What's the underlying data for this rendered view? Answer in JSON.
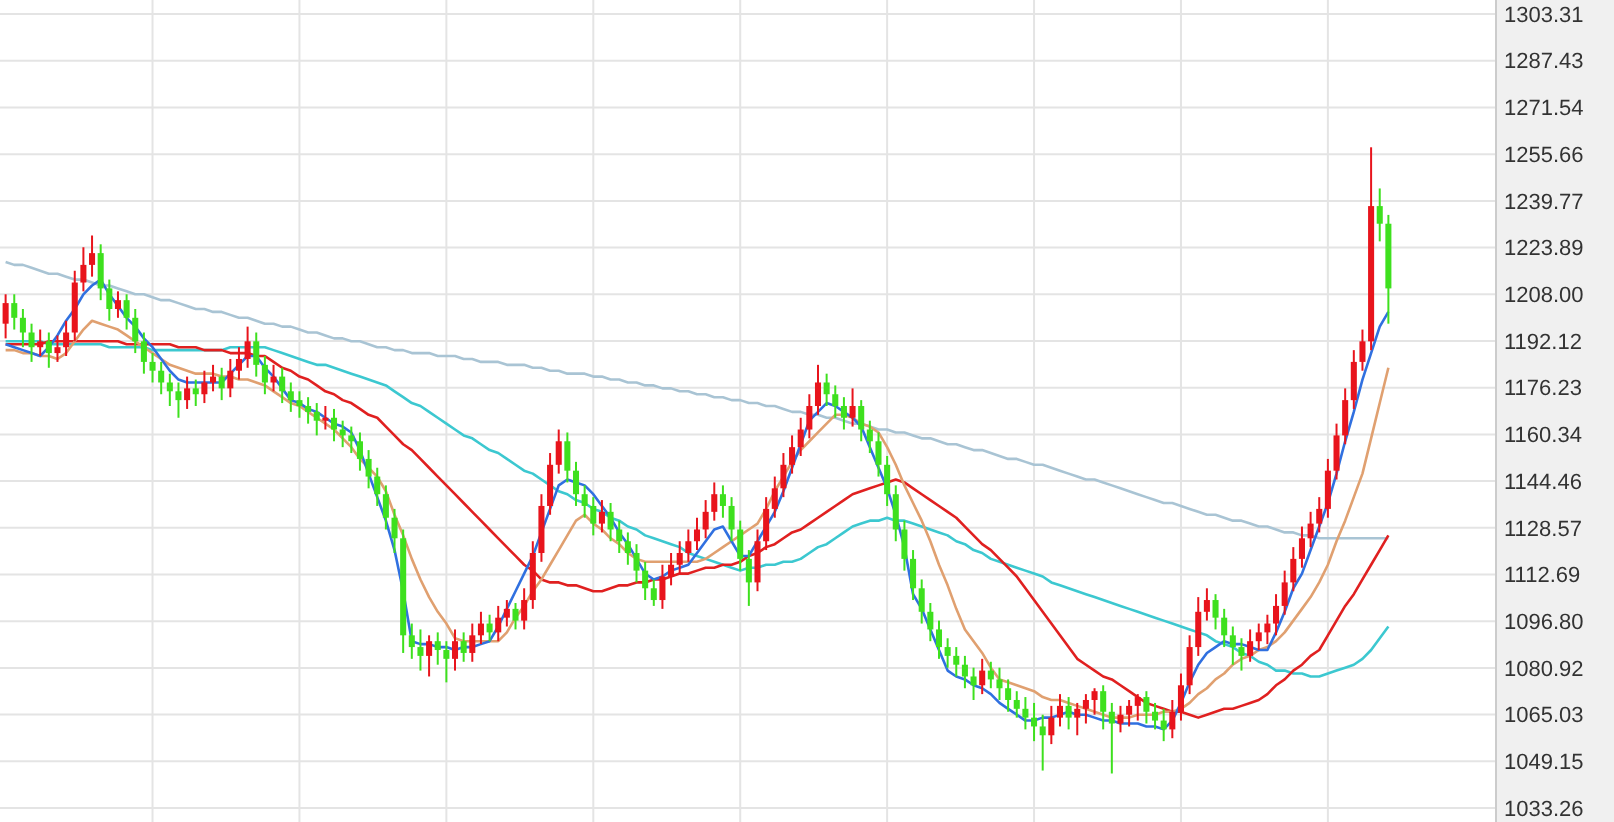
{
  "chart_data": {
    "type": "candlestick",
    "categories": [
      null,
      null,
      null,
      null,
      null,
      null,
      null,
      null,
      null,
      null,
      null,
      null,
      null,
      null,
      null,
      null,
      null,
      null,
      null,
      null,
      null,
      null,
      null,
      null,
      null,
      null,
      null,
      null,
      null,
      null,
      null,
      null,
      null,
      null,
      null,
      null,
      null,
      null,
      null,
      null,
      null,
      null,
      null,
      null,
      null,
      null,
      null,
      null,
      null,
      null,
      null,
      null,
      null,
      null,
      null,
      null,
      null,
      null,
      null,
      null,
      null,
      null,
      null,
      null,
      null,
      null,
      null,
      null,
      null,
      null,
      null,
      null,
      null,
      null,
      null,
      null,
      null,
      null,
      null,
      null,
      null,
      null,
      null,
      null,
      null,
      null,
      null,
      null,
      null,
      null,
      null,
      null,
      null,
      null,
      null,
      null,
      null,
      null,
      null,
      null,
      null,
      null,
      null,
      null,
      null,
      null,
      null,
      null,
      null,
      null,
      null,
      null,
      null,
      null,
      null,
      null,
      null,
      null,
      null,
      null,
      null,
      null,
      null,
      null,
      null,
      null,
      null,
      null,
      null,
      null,
      null,
      null,
      null,
      null,
      null,
      null,
      null,
      null,
      null,
      null,
      null,
      null,
      null,
      null,
      null,
      null,
      null,
      null,
      null,
      null,
      null,
      null,
      null,
      null,
      null,
      null,
      null,
      null,
      null,
      null,
      null
    ],
    "ohlc": [
      [
        1198,
        1208,
        1193,
        1205
      ],
      [
        1205,
        1208,
        1196,
        1200
      ],
      [
        1200,
        1203,
        1190,
        1195
      ],
      [
        1195,
        1198,
        1185,
        1190
      ],
      [
        1190,
        1196,
        1187,
        1192
      ],
      [
        1192,
        1195,
        1183,
        1188
      ],
      [
        1188,
        1194,
        1185,
        1190
      ],
      [
        1190,
        1199,
        1187,
        1195
      ],
      [
        1195,
        1216,
        1192,
        1212
      ],
      [
        1212,
        1224,
        1209,
        1218
      ],
      [
        1218,
        1228,
        1214,
        1222
      ],
      [
        1222,
        1225,
        1206,
        1210
      ],
      [
        1210,
        1213,
        1199,
        1203
      ],
      [
        1203,
        1209,
        1200,
        1206
      ],
      [
        1206,
        1208,
        1196,
        1200
      ],
      [
        1200,
        1203,
        1188,
        1192
      ],
      [
        1192,
        1195,
        1181,
        1185
      ],
      [
        1185,
        1188,
        1178,
        1182
      ],
      [
        1182,
        1185,
        1174,
        1178
      ],
      [
        1178,
        1181,
        1170,
        1175
      ],
      [
        1175,
        1178,
        1166,
        1172
      ],
      [
        1172,
        1180,
        1169,
        1176
      ],
      [
        1176,
        1179,
        1170,
        1174
      ],
      [
        1174,
        1182,
        1171,
        1178
      ],
      [
        1178,
        1184,
        1175,
        1180
      ],
      [
        1180,
        1183,
        1172,
        1176
      ],
      [
        1176,
        1186,
        1173,
        1182
      ],
      [
        1182,
        1190,
        1179,
        1186
      ],
      [
        1186,
        1197,
        1183,
        1192
      ],
      [
        1192,
        1195,
        1180,
        1184
      ],
      [
        1184,
        1187,
        1174,
        1178
      ],
      [
        1178,
        1184,
        1175,
        1180
      ],
      [
        1180,
        1183,
        1171,
        1175
      ],
      [
        1175,
        1178,
        1168,
        1172
      ],
      [
        1172,
        1175,
        1166,
        1170
      ],
      [
        1170,
        1173,
        1164,
        1168
      ],
      [
        1168,
        1171,
        1160,
        1165
      ],
      [
        1165,
        1170,
        1162,
        1166
      ],
      [
        1166,
        1169,
        1158,
        1162
      ],
      [
        1162,
        1165,
        1156,
        1160
      ],
      [
        1160,
        1163,
        1154,
        1158
      ],
      [
        1158,
        1161,
        1148,
        1152
      ],
      [
        1152,
        1155,
        1142,
        1146
      ],
      [
        1146,
        1149,
        1136,
        1140
      ],
      [
        1140,
        1143,
        1128,
        1132
      ],
      [
        1132,
        1135,
        1120,
        1125
      ],
      [
        1125,
        1128,
        1086,
        1092
      ],
      [
        1092,
        1096,
        1084,
        1088
      ],
      [
        1088,
        1094,
        1080,
        1085
      ],
      [
        1085,
        1092,
        1078,
        1090
      ],
      [
        1090,
        1093,
        1082,
        1087
      ],
      [
        1087,
        1090,
        1076,
        1084
      ],
      [
        1084,
        1094,
        1080,
        1090
      ],
      [
        1090,
        1093,
        1083,
        1086
      ],
      [
        1086,
        1096,
        1083,
        1092
      ],
      [
        1092,
        1100,
        1089,
        1096
      ],
      [
        1096,
        1099,
        1090,
        1093
      ],
      [
        1093,
        1102,
        1090,
        1098
      ],
      [
        1098,
        1104,
        1095,
        1101
      ],
      [
        1101,
        1103,
        1094,
        1097
      ],
      [
        1097,
        1108,
        1094,
        1104
      ],
      [
        1104,
        1124,
        1101,
        1120
      ],
      [
        1120,
        1140,
        1117,
        1136
      ],
      [
        1136,
        1154,
        1133,
        1150
      ],
      [
        1150,
        1162,
        1147,
        1158
      ],
      [
        1158,
        1161,
        1144,
        1148
      ],
      [
        1148,
        1151,
        1136,
        1140
      ],
      [
        1140,
        1143,
        1132,
        1136
      ],
      [
        1136,
        1139,
        1126,
        1130
      ],
      [
        1130,
        1138,
        1127,
        1134
      ],
      [
        1134,
        1137,
        1124,
        1128
      ],
      [
        1128,
        1131,
        1120,
        1124
      ],
      [
        1124,
        1127,
        1116,
        1120
      ],
      [
        1120,
        1123,
        1110,
        1114
      ],
      [
        1114,
        1117,
        1104,
        1108
      ],
      [
        1108,
        1111,
        1102,
        1104
      ],
      [
        1104,
        1116,
        1101,
        1112
      ],
      [
        1112,
        1120,
        1109,
        1116
      ],
      [
        1116,
        1124,
        1113,
        1120
      ],
      [
        1120,
        1128,
        1117,
        1124
      ],
      [
        1124,
        1132,
        1121,
        1128
      ],
      [
        1128,
        1138,
        1125,
        1134
      ],
      [
        1134,
        1144,
        1131,
        1140
      ],
      [
        1140,
        1143,
        1132,
        1136
      ],
      [
        1136,
        1139,
        1124,
        1128
      ],
      [
        1128,
        1131,
        1114,
        1118
      ],
      [
        1118,
        1121,
        1102,
        1110
      ],
      [
        1110,
        1128,
        1107,
        1124
      ],
      [
        1124,
        1139,
        1121,
        1135
      ],
      [
        1135,
        1146,
        1132,
        1142
      ],
      [
        1142,
        1154,
        1139,
        1150
      ],
      [
        1150,
        1160,
        1147,
        1156
      ],
      [
        1156,
        1166,
        1153,
        1162
      ],
      [
        1162,
        1174,
        1159,
        1170
      ],
      [
        1170,
        1184,
        1167,
        1178
      ],
      [
        1178,
        1181,
        1170,
        1174
      ],
      [
        1174,
        1177,
        1166,
        1170
      ],
      [
        1170,
        1173,
        1162,
        1166
      ],
      [
        1166,
        1176,
        1163,
        1170
      ],
      [
        1170,
        1172,
        1158,
        1162
      ],
      [
        1162,
        1165,
        1154,
        1158
      ],
      [
        1158,
        1161,
        1146,
        1150
      ],
      [
        1150,
        1153,
        1136,
        1140
      ],
      [
        1140,
        1143,
        1124,
        1128
      ],
      [
        1128,
        1131,
        1114,
        1118
      ],
      [
        1118,
        1121,
        1104,
        1108
      ],
      [
        1108,
        1111,
        1096,
        1100
      ],
      [
        1100,
        1103,
        1090,
        1094
      ],
      [
        1094,
        1097,
        1084,
        1088
      ],
      [
        1088,
        1091,
        1081,
        1085
      ],
      [
        1085,
        1088,
        1078,
        1082
      ],
      [
        1082,
        1085,
        1074,
        1078
      ],
      [
        1078,
        1081,
        1070,
        1075
      ],
      [
        1075,
        1084,
        1072,
        1080
      ],
      [
        1080,
        1083,
        1074,
        1077
      ],
      [
        1077,
        1081,
        1070,
        1074
      ],
      [
        1074,
        1077,
        1066,
        1070
      ],
      [
        1070,
        1073,
        1064,
        1067
      ],
      [
        1067,
        1071,
        1060,
        1064
      ],
      [
        1064,
        1069,
        1056,
        1061
      ],
      [
        1061,
        1065,
        1046,
        1058
      ],
      [
        1058,
        1068,
        1055,
        1064
      ],
      [
        1064,
        1072,
        1061,
        1068
      ],
      [
        1068,
        1071,
        1060,
        1064
      ],
      [
        1064,
        1069,
        1058,
        1067
      ],
      [
        1067,
        1072,
        1062,
        1070
      ],
      [
        1070,
        1074,
        1065,
        1073
      ],
      [
        1073,
        1075,
        1060,
        1066
      ],
      [
        1066,
        1069,
        1045,
        1062
      ],
      [
        1062,
        1068,
        1059,
        1065
      ],
      [
        1065,
        1070,
        1061,
        1068
      ],
      [
        1068,
        1072,
        1063,
        1071
      ],
      [
        1071,
        1073,
        1062,
        1066
      ],
      [
        1066,
        1069,
        1060,
        1063
      ],
      [
        1063,
        1067,
        1056,
        1060
      ],
      [
        1060,
        1070,
        1057,
        1066
      ],
      [
        1066,
        1079,
        1063,
        1075
      ],
      [
        1075,
        1092,
        1072,
        1088
      ],
      [
        1088,
        1105,
        1085,
        1100
      ],
      [
        1100,
        1108,
        1097,
        1104
      ],
      [
        1104,
        1106,
        1094,
        1098
      ],
      [
        1098,
        1101,
        1088,
        1092
      ],
      [
        1092,
        1095,
        1082,
        1088
      ],
      [
        1088,
        1091,
        1080,
        1085
      ],
      [
        1085,
        1094,
        1083,
        1090
      ],
      [
        1090,
        1096,
        1087,
        1093
      ],
      [
        1093,
        1099,
        1089,
        1096
      ],
      [
        1096,
        1106,
        1092,
        1102
      ],
      [
        1102,
        1114,
        1099,
        1110
      ],
      [
        1110,
        1122,
        1107,
        1118
      ],
      [
        1118,
        1129,
        1115,
        1125
      ],
      [
        1125,
        1134,
        1122,
        1130
      ],
      [
        1130,
        1139,
        1127,
        1135
      ],
      [
        1135,
        1152,
        1132,
        1148
      ],
      [
        1148,
        1164,
        1145,
        1160
      ],
      [
        1160,
        1176,
        1157,
        1172
      ],
      [
        1172,
        1189,
        1169,
        1185
      ],
      [
        1185,
        1196,
        1182,
        1192
      ],
      [
        1192,
        1258,
        1189,
        1238
      ],
      [
        1238,
        1244,
        1226,
        1232
      ],
      [
        1232,
        1235,
        1198,
        1210
      ]
    ],
    "colors": [
      "#e8141c",
      "#3ee01e",
      "#3ee01e",
      "#3ee01e",
      "#e8141c",
      "#3ee01e",
      "#e8141c",
      "#e8141c",
      "#e8141c",
      "#e8141c",
      "#e8141c",
      "#3ee01e",
      "#3ee01e",
      "#e8141c",
      "#3ee01e",
      "#3ee01e",
      "#3ee01e",
      "#3ee01e",
      "#3ee01e",
      "#3ee01e",
      "#3ee01e",
      "#e8141c",
      "#3ee01e",
      "#e8141c",
      "#e8141c",
      "#3ee01e",
      "#e8141c",
      "#e8141c",
      "#e8141c",
      "#3ee01e",
      "#3ee01e",
      "#e8141c",
      "#3ee01e",
      "#3ee01e",
      "#3ee01e",
      "#3ee01e",
      "#3ee01e",
      "#e8141c",
      "#3ee01e",
      "#3ee01e",
      "#3ee01e",
      "#3ee01e",
      "#3ee01e",
      "#3ee01e",
      "#3ee01e",
      "#3ee01e",
      "#3ee01e",
      "#3ee01e",
      "#3ee01e",
      "#e8141c",
      "#3ee01e",
      "#3ee01e",
      "#e8141c",
      "#3ee01e",
      "#e8141c",
      "#e8141c",
      "#3ee01e",
      "#e8141c",
      "#e8141c",
      "#3ee01e",
      "#e8141c",
      "#e8141c",
      "#e8141c",
      "#e8141c",
      "#e8141c",
      "#3ee01e",
      "#3ee01e",
      "#3ee01e",
      "#3ee01e",
      "#e8141c",
      "#3ee01e",
      "#3ee01e",
      "#3ee01e",
      "#3ee01e",
      "#3ee01e",
      "#3ee01e",
      "#e8141c",
      "#e8141c",
      "#e8141c",
      "#e8141c",
      "#e8141c",
      "#e8141c",
      "#e8141c",
      "#3ee01e",
      "#3ee01e",
      "#3ee01e",
      "#3ee01e",
      "#e8141c",
      "#e8141c",
      "#e8141c",
      "#e8141c",
      "#e8141c",
      "#e8141c",
      "#e8141c",
      "#e8141c",
      "#3ee01e",
      "#3ee01e",
      "#3ee01e",
      "#e8141c",
      "#3ee01e",
      "#3ee01e",
      "#3ee01e",
      "#3ee01e",
      "#3ee01e",
      "#3ee01e",
      "#3ee01e",
      "#3ee01e",
      "#3ee01e",
      "#3ee01e",
      "#3ee01e",
      "#3ee01e",
      "#3ee01e",
      "#3ee01e",
      "#e8141c",
      "#3ee01e",
      "#3ee01e",
      "#3ee01e",
      "#3ee01e",
      "#3ee01e",
      "#3ee01e",
      "#3ee01e",
      "#e8141c",
      "#e8141c",
      "#3ee01e",
      "#e8141c",
      "#e8141c",
      "#e8141c",
      "#3ee01e",
      "#3ee01e",
      "#e8141c",
      "#e8141c",
      "#e8141c",
      "#3ee01e",
      "#3ee01e",
      "#3ee01e",
      "#e8141c",
      "#e8141c",
      "#e8141c",
      "#e8141c",
      "#e8141c",
      "#3ee01e",
      "#3ee01e",
      "#3ee01e",
      "#3ee01e",
      "#e8141c",
      "#e8141c",
      "#e8141c",
      "#e8141c",
      "#e8141c",
      "#e8141c",
      "#e8141c",
      "#e8141c",
      "#e8141c",
      "#e8141c",
      "#e8141c",
      "#e8141c",
      "#e8141c",
      "#e8141c",
      "#e8141c",
      "#3ee01e",
      "#3ee01e"
    ],
    "series": [
      {
        "type": "line",
        "color": "#a9c4d4",
        "values": [
          1219,
          1218,
          1218,
          1217,
          1216,
          1215,
          1215,
          1214,
          1213,
          1213,
          1212,
          1211,
          1211,
          1210,
          1209,
          1208,
          1208,
          1207,
          1206,
          1206,
          1205,
          1204,
          1203,
          1203,
          1202,
          1202,
          1201,
          1200,
          1200,
          1199,
          1198,
          1198,
          1197,
          1197,
          1196,
          1195,
          1195,
          1194,
          1193,
          1193,
          1192,
          1192,
          1191,
          1190,
          1190,
          1189,
          1189,
          1188,
          1188,
          1188,
          1187,
          1187,
          1187,
          1186,
          1186,
          1185,
          1185,
          1185,
          1184,
          1184,
          1184,
          1183,
          1183,
          1182,
          1182,
          1181,
          1181,
          1181,
          1180,
          1180,
          1179,
          1179,
          1178,
          1178,
          1177,
          1177,
          1176,
          1176,
          1175,
          1175,
          1174,
          1174,
          1173,
          1173,
          1172,
          1172,
          1171,
          1171,
          1170,
          1170,
          1169,
          1168,
          1168,
          1167,
          1167,
          1166,
          1166,
          1165,
          1164,
          1164,
          1163,
          1162,
          1162,
          1161,
          1161,
          1160,
          1159,
          1159,
          1158,
          1157,
          1157,
          1156,
          1155,
          1155,
          1154,
          1153,
          1152,
          1152,
          1151,
          1150,
          1150,
          1149,
          1148,
          1147,
          1146,
          1145,
          1145,
          1144,
          1143,
          1142,
          1141,
          1140,
          1139,
          1138,
          1137,
          1137,
          1136,
          1135,
          1134,
          1133,
          1133,
          1132,
          1131,
          1131,
          1130,
          1129,
          1129,
          1128,
          1127,
          1127,
          1126,
          1126,
          1125,
          1125,
          1125,
          1125,
          1125,
          1125,
          1125,
          1125,
          1125
        ]
      },
      {
        "type": "line",
        "color": "#3cc8d0",
        "values": [
          1192,
          1192,
          1192,
          1192,
          1192,
          1191,
          1191,
          1191,
          1191,
          1191,
          1191,
          1191,
          1190,
          1190,
          1190,
          1190,
          1190,
          1189,
          1189,
          1189,
          1189,
          1189,
          1189,
          1189,
          1189,
          1189,
          1190,
          1190,
          1190,
          1190,
          1190,
          1189,
          1188,
          1187,
          1186,
          1185,
          1184,
          1184,
          1183,
          1182,
          1181,
          1180,
          1179,
          1178,
          1177,
          1175,
          1173,
          1171,
          1170,
          1168,
          1166,
          1164,
          1162,
          1160,
          1159,
          1157,
          1155,
          1154,
          1152,
          1150,
          1148,
          1147,
          1145,
          1143,
          1141,
          1140,
          1138,
          1137,
          1135,
          1134,
          1132,
          1131,
          1129,
          1128,
          1126,
          1125,
          1124,
          1123,
          1122,
          1120,
          1119,
          1118,
          1117,
          1116,
          1115,
          1114,
          1115,
          1115,
          1116,
          1116,
          1117,
          1117,
          1118,
          1120,
          1122,
          1123,
          1125,
          1127,
          1129,
          1130,
          1131,
          1131,
          1132,
          1131,
          1131,
          1130,
          1129,
          1128,
          1127,
          1126,
          1124,
          1123,
          1121,
          1120,
          1118,
          1117,
          1116,
          1115,
          1114,
          1113,
          1112,
          1110,
          1109,
          1108,
          1107,
          1106,
          1105,
          1104,
          1103,
          1102,
          1101,
          1100,
          1099,
          1098,
          1097,
          1096,
          1095,
          1094,
          1093,
          1092,
          1090,
          1089,
          1088,
          1086,
          1085,
          1083,
          1082,
          1080,
          1080,
          1079,
          1079,
          1078,
          1078,
          1079,
          1080,
          1081,
          1082,
          1084,
          1087,
          1091,
          1095
        ]
      },
      {
        "type": "line",
        "color": "#e02020",
        "values": [
          1191,
          1191,
          1191,
          1191,
          1191,
          1192,
          1192,
          1192,
          1192,
          1192,
          1192,
          1192,
          1192,
          1192,
          1191,
          1191,
          1191,
          1191,
          1191,
          1191,
          1190,
          1190,
          1190,
          1189,
          1189,
          1189,
          1188,
          1188,
          1188,
          1187,
          1187,
          1185,
          1183,
          1182,
          1180,
          1179,
          1177,
          1175,
          1174,
          1172,
          1171,
          1169,
          1167,
          1166,
          1163,
          1160,
          1157,
          1155,
          1152,
          1149,
          1146,
          1143,
          1140,
          1137,
          1134,
          1131,
          1128,
          1125,
          1122,
          1119,
          1116,
          1114,
          1111,
          1110,
          1110,
          1109,
          1109,
          1108,
          1107,
          1107,
          1108,
          1109,
          1109,
          1110,
          1110,
          1111,
          1111,
          1112,
          1113,
          1113,
          1114,
          1115,
          1115,
          1116,
          1116,
          1117,
          1119,
          1120,
          1122,
          1123,
          1125,
          1127,
          1128,
          1130,
          1132,
          1134,
          1136,
          1138,
          1140,
          1141,
          1142,
          1143,
          1144,
          1145,
          1144,
          1142,
          1140,
          1138,
          1136,
          1134,
          1132,
          1129,
          1126,
          1123,
          1121,
          1118,
          1115,
          1112,
          1108,
          1104,
          1100,
          1096,
          1092,
          1088,
          1084,
          1082,
          1080,
          1078,
          1077,
          1075,
          1073,
          1071,
          1069,
          1068,
          1067,
          1066,
          1066,
          1065,
          1064,
          1065,
          1066,
          1067,
          1067,
          1068,
          1069,
          1070,
          1072,
          1075,
          1077,
          1080,
          1082,
          1085,
          1087,
          1092,
          1097,
          1102,
          1106,
          1111,
          1116,
          1121,
          1126
        ]
      },
      {
        "type": "line",
        "color": "#e0a070",
        "values": [
          1189,
          1189,
          1188,
          1188,
          1187,
          1187,
          1186,
          1188,
          1192,
          1196,
          1199,
          1198,
          1197,
          1196,
          1194,
          1192,
          1190,
          1188,
          1186,
          1184,
          1183,
          1182,
          1181,
          1181,
          1181,
          1180,
          1180,
          1179,
          1179,
          1178,
          1177,
          1175,
          1173,
          1171,
          1170,
          1168,
          1166,
          1164,
          1162,
          1159,
          1156,
          1152,
          1149,
          1146,
          1141,
          1133,
          1126,
          1118,
          1111,
          1105,
          1100,
          1096,
          1091,
          1090,
          1090,
          1090,
          1090,
          1090,
          1093,
          1098,
          1102,
          1107,
          1111,
          1116,
          1121,
          1126,
          1131,
          1133,
          1130,
          1128,
          1125,
          1123,
          1120,
          1118,
          1117,
          1117,
          1117,
          1117,
          1117,
          1117,
          1117,
          1118,
          1120,
          1122,
          1124,
          1126,
          1128,
          1130,
          1135,
          1141,
          1146,
          1151,
          1155,
          1158,
          1161,
          1164,
          1167,
          1167,
          1166,
          1164,
          1163,
          1161,
          1156,
          1150,
          1143,
          1137,
          1131,
          1124,
          1116,
          1109,
          1101,
          1094,
          1090,
          1086,
          1081,
          1077,
          1076,
          1075,
          1074,
          1073,
          1071,
          1070,
          1070,
          1069,
          1068,
          1067,
          1066,
          1065,
          1064,
          1064,
          1064,
          1065,
          1065,
          1065,
          1066,
          1066,
          1067,
          1069,
          1072,
          1074,
          1077,
          1079,
          1082,
          1084,
          1085,
          1087,
          1088,
          1090,
          1093,
          1097,
          1101,
          1105,
          1110,
          1116,
          1124,
          1131,
          1139,
          1147,
          1159,
          1171,
          1183
        ]
      },
      {
        "type": "line",
        "color": "#3070e0",
        "values": [
          1191,
          1190,
          1189,
          1188,
          1187,
          1190,
          1194,
          1199,
          1203,
          1208,
          1211,
          1213,
          1208,
          1204,
          1200,
          1197,
          1193,
          1190,
          1186,
          1182,
          1179,
          1178,
          1178,
          1178,
          1178,
          1178,
          1181,
          1184,
          1187,
          1187,
          1183,
          1180,
          1176,
          1172,
          1171,
          1169,
          1168,
          1166,
          1164,
          1163,
          1161,
          1155,
          1147,
          1139,
          1131,
          1121,
          1107,
          1090,
          1089,
          1089,
          1088,
          1088,
          1087,
          1088,
          1088,
          1089,
          1090,
          1095,
          1101,
          1107,
          1113,
          1119,
          1127,
          1135,
          1143,
          1145,
          1144,
          1143,
          1140,
          1136,
          1132,
          1127,
          1123,
          1118,
          1113,
          1111,
          1112,
          1114,
          1115,
          1116,
          1120,
          1124,
          1128,
          1129,
          1124,
          1119,
          1119,
          1124,
          1129,
          1134,
          1141,
          1149,
          1157,
          1165,
          1168,
          1171,
          1170,
          1168,
          1166,
          1163,
          1156,
          1149,
          1142,
          1133,
          1122,
          1106,
          1101,
          1094,
          1087,
          1080,
          1078,
          1077,
          1075,
          1074,
          1072,
          1069,
          1067,
          1065,
          1063,
          1063,
          1064,
          1064,
          1065,
          1066,
          1065,
          1065,
          1064,
          1063,
          1063,
          1062,
          1062,
          1062,
          1061,
          1061,
          1060,
          1063,
          1069,
          1076,
          1082,
          1086,
          1088,
          1090,
          1089,
          1089,
          1088,
          1087,
          1087,
          1093,
          1100,
          1108,
          1113,
          1121,
          1129,
          1137,
          1147,
          1158,
          1168,
          1179,
          1188,
          1197,
          1202
        ]
      }
    ],
    "ylim": [
      1028.5,
      1308.1
    ],
    "yticks": [
      1303.31,
      1287.43,
      1271.54,
      1255.66,
      1239.77,
      1223.89,
      {
        "value": 1208,
        "label": "1208.00"
      },
      1192.12,
      1176.23,
      1160.34,
      1144.46,
      1128.57,
      1112.69,
      {
        "value": 1096.8,
        "label": "1096.80"
      },
      1080.92,
      1065.03,
      1049.15,
      1033.26
    ],
    "grid": true,
    "tick_labels": "y"
  }
}
